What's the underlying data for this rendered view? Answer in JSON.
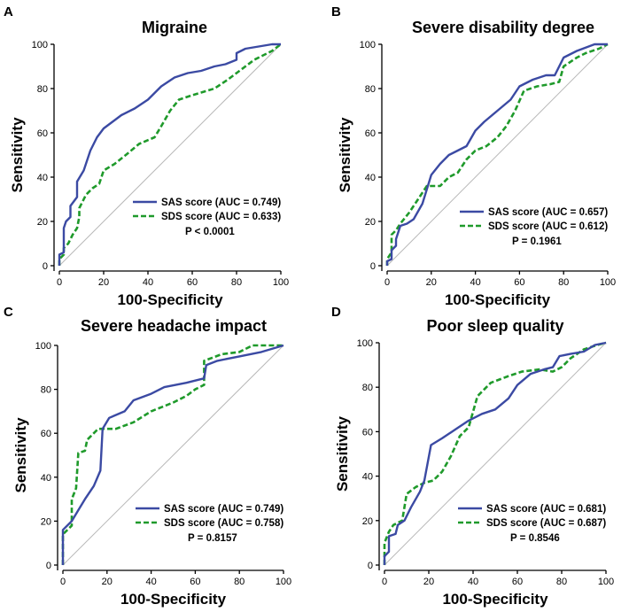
{
  "figure": {
    "colors": {
      "sas": "#3b4aa3",
      "sds": "#1f9a2b",
      "diagonal": "#b8b8b8"
    }
  },
  "chart_data": [
    {
      "type": "line",
      "panel": "A",
      "title": "Migraine",
      "xlabel": "100-Specificity",
      "ylabel": "Sensitivity",
      "xlim": [
        0,
        100
      ],
      "ylim": [
        0,
        100
      ],
      "xticks": [
        "0",
        "20",
        "40",
        "60",
        "80",
        "100"
      ],
      "yticks": [
        "0",
        "20",
        "40",
        "60",
        "80",
        "100"
      ],
      "series": [
        {
          "name": "SAS score",
          "legend": "SAS score (AUC = 0.749)",
          "points": [
            [
              0,
              0
            ],
            [
              0,
              5
            ],
            [
              2,
              6
            ],
            [
              2,
              17
            ],
            [
              3,
              20
            ],
            [
              5,
              22
            ],
            [
              5,
              27
            ],
            [
              8,
              31
            ],
            [
              8,
              38
            ],
            [
              11,
              43
            ],
            [
              14,
              52
            ],
            [
              17,
              58
            ],
            [
              20,
              62
            ],
            [
              24,
              65
            ],
            [
              28,
              68
            ],
            [
              34,
              71
            ],
            [
              40,
              75
            ],
            [
              46,
              81
            ],
            [
              52,
              85
            ],
            [
              58,
              87
            ],
            [
              64,
              88
            ],
            [
              70,
              90
            ],
            [
              75,
              91
            ],
            [
              80,
              93
            ],
            [
              80,
              96
            ],
            [
              84,
              98
            ],
            [
              90,
              99
            ],
            [
              96,
              100
            ],
            [
              100,
              100
            ]
          ]
        },
        {
          "name": "SDS score",
          "legend": "SDS score (AUC = 0.633)",
          "points": [
            [
              0,
              0
            ],
            [
              0,
              3
            ],
            [
              2,
              5
            ],
            [
              2,
              8
            ],
            [
              4,
              10
            ],
            [
              6,
              14
            ],
            [
              8,
              17
            ],
            [
              9,
              22
            ],
            [
              9,
              26
            ],
            [
              12,
              32
            ],
            [
              15,
              35
            ],
            [
              18,
              37
            ],
            [
              20,
              43
            ],
            [
              25,
              46
            ],
            [
              30,
              50
            ],
            [
              36,
              55
            ],
            [
              43,
              58
            ],
            [
              46,
              63
            ],
            [
              50,
              70
            ],
            [
              54,
              75
            ],
            [
              60,
              77
            ],
            [
              70,
              80
            ],
            [
              76,
              84
            ],
            [
              80,
              87
            ],
            [
              84,
              90
            ],
            [
              88,
              93
            ],
            [
              92,
              95
            ],
            [
              96,
              97
            ],
            [
              100,
              100
            ]
          ]
        }
      ],
      "annotation": "P < 0.0001"
    },
    {
      "type": "line",
      "panel": "B",
      "title": "Severe disability degree",
      "xlabel": "100-Specificity",
      "ylabel": "Sensitivity",
      "xlim": [
        0,
        100
      ],
      "ylim": [
        0,
        100
      ],
      "xticks": [
        "0",
        "20",
        "40",
        "60",
        "80",
        "100"
      ],
      "yticks": [
        "0",
        "20",
        "40",
        "60",
        "80",
        "100"
      ],
      "series": [
        {
          "name": "SAS score",
          "legend": "SAS score (AUC = 0.657)",
          "points": [
            [
              0,
              0
            ],
            [
              0,
              2
            ],
            [
              2,
              3
            ],
            [
              2,
              7
            ],
            [
              4,
              9
            ],
            [
              4,
              12
            ],
            [
              6,
              18
            ],
            [
              9,
              19
            ],
            [
              12,
              21
            ],
            [
              16,
              28
            ],
            [
              20,
              41
            ],
            [
              24,
              46
            ],
            [
              28,
              50
            ],
            [
              32,
              52
            ],
            [
              36,
              54
            ],
            [
              40,
              61
            ],
            [
              44,
              65
            ],
            [
              50,
              70
            ],
            [
              56,
              75
            ],
            [
              60,
              81
            ],
            [
              66,
              84
            ],
            [
              72,
              86
            ],
            [
              76,
              86
            ],
            [
              80,
              94
            ],
            [
              86,
              97
            ],
            [
              94,
              100
            ],
            [
              100,
              100
            ]
          ]
        },
        {
          "name": "SDS score",
          "legend": "SDS score (AUC = 0.612)",
          "points": [
            [
              0,
              0
            ],
            [
              0,
              3
            ],
            [
              2,
              6
            ],
            [
              2,
              14
            ],
            [
              4,
              16
            ],
            [
              6,
              19
            ],
            [
              10,
              24
            ],
            [
              14,
              30
            ],
            [
              18,
              36
            ],
            [
              24,
              36
            ],
            [
              28,
              40
            ],
            [
              32,
              42
            ],
            [
              36,
              48
            ],
            [
              40,
              52
            ],
            [
              45,
              54
            ],
            [
              50,
              58
            ],
            [
              54,
              63
            ],
            [
              58,
              70
            ],
            [
              62,
              79
            ],
            [
              68,
              81
            ],
            [
              74,
              82
            ],
            [
              78,
              83
            ],
            [
              80,
              90
            ],
            [
              86,
              94
            ],
            [
              90,
              96
            ],
            [
              96,
              98
            ],
            [
              100,
              100
            ]
          ]
        }
      ],
      "annotation": "P = 0.1961"
    },
    {
      "type": "line",
      "panel": "C",
      "title": "Severe headache impact",
      "xlabel": "100-Specificity",
      "ylabel": "Sensitivity",
      "xlim": [
        0,
        100
      ],
      "ylim": [
        0,
        100
      ],
      "xticks": [
        "0",
        "20",
        "40",
        "60",
        "80",
        "100"
      ],
      "yticks": [
        "0",
        "20",
        "40",
        "60",
        "80",
        "100"
      ],
      "series": [
        {
          "name": "SAS score",
          "legend": "SAS score (AUC = 0.749)",
          "points": [
            [
              0,
              0
            ],
            [
              0,
              16
            ],
            [
              4,
              20
            ],
            [
              7,
              25
            ],
            [
              10,
              30
            ],
            [
              14,
              36
            ],
            [
              17,
              43
            ],
            [
              18,
              62
            ],
            [
              21,
              67
            ],
            [
              28,
              70
            ],
            [
              32,
              75
            ],
            [
              40,
              78
            ],
            [
              46,
              81
            ],
            [
              56,
              83
            ],
            [
              64,
              85
            ],
            [
              65,
              91
            ],
            [
              70,
              93
            ],
            [
              80,
              95
            ],
            [
              90,
              97
            ],
            [
              100,
              100
            ]
          ]
        },
        {
          "name": "SDS score",
          "legend": "SDS score (AUC = 0.758)",
          "points": [
            [
              0,
              0
            ],
            [
              0,
              14
            ],
            [
              4,
              18
            ],
            [
              4,
              30
            ],
            [
              6,
              35
            ],
            [
              7,
              51
            ],
            [
              10,
              52
            ],
            [
              11,
              57
            ],
            [
              16,
              62
            ],
            [
              24,
              62
            ],
            [
              32,
              65
            ],
            [
              40,
              70
            ],
            [
              50,
              74
            ],
            [
              56,
              77
            ],
            [
              60,
              80
            ],
            [
              64,
              82
            ],
            [
              64,
              93
            ],
            [
              72,
              96
            ],
            [
              80,
              97
            ],
            [
              86,
              100
            ],
            [
              100,
              100
            ]
          ]
        }
      ],
      "annotation": "P = 0.8157"
    },
    {
      "type": "line",
      "panel": "D",
      "title": "Poor sleep quality",
      "xlabel": "100-Specificity",
      "ylabel": "Sensitivity",
      "xlim": [
        0,
        100
      ],
      "ylim": [
        0,
        100
      ],
      "xticks": [
        "0",
        "20",
        "40",
        "60",
        "80",
        "100"
      ],
      "yticks": [
        "0",
        "20",
        "40",
        "60",
        "80",
        "100"
      ],
      "series": [
        {
          "name": "SAS score",
          "legend": "SAS score (AUC = 0.681)",
          "points": [
            [
              0,
              0
            ],
            [
              0,
              4
            ],
            [
              2,
              6
            ],
            [
              2,
              13
            ],
            [
              5,
              14
            ],
            [
              6,
              18
            ],
            [
              9,
              20
            ],
            [
              12,
              26
            ],
            [
              16,
              33
            ],
            [
              18,
              38
            ],
            [
              21,
              54
            ],
            [
              26,
              57
            ],
            [
              32,
              61
            ],
            [
              38,
              65
            ],
            [
              44,
              68
            ],
            [
              50,
              70
            ],
            [
              56,
              75
            ],
            [
              60,
              81
            ],
            [
              66,
              86
            ],
            [
              72,
              88
            ],
            [
              76,
              89
            ],
            [
              79,
              94
            ],
            [
              84,
              95
            ],
            [
              90,
              96
            ],
            [
              95,
              99
            ],
            [
              100,
              100
            ]
          ]
        },
        {
          "name": "SDS score",
          "legend": "SDS score (AUC = 0.687)",
          "points": [
            [
              0,
              0
            ],
            [
              0,
              10
            ],
            [
              2,
              15
            ],
            [
              4,
              18
            ],
            [
              8,
              20
            ],
            [
              10,
              32
            ],
            [
              14,
              35
            ],
            [
              18,
              37
            ],
            [
              22,
              38
            ],
            [
              26,
              42
            ],
            [
              30,
              49
            ],
            [
              34,
              58
            ],
            [
              38,
              62
            ],
            [
              42,
              76
            ],
            [
              48,
              82
            ],
            [
              56,
              85
            ],
            [
              62,
              87
            ],
            [
              70,
              88
            ],
            [
              76,
              87
            ],
            [
              80,
              89
            ],
            [
              84,
              93
            ],
            [
              90,
              97
            ],
            [
              96,
              99
            ],
            [
              100,
              100
            ]
          ]
        }
      ],
      "annotation": "P = 0.8546"
    }
  ]
}
